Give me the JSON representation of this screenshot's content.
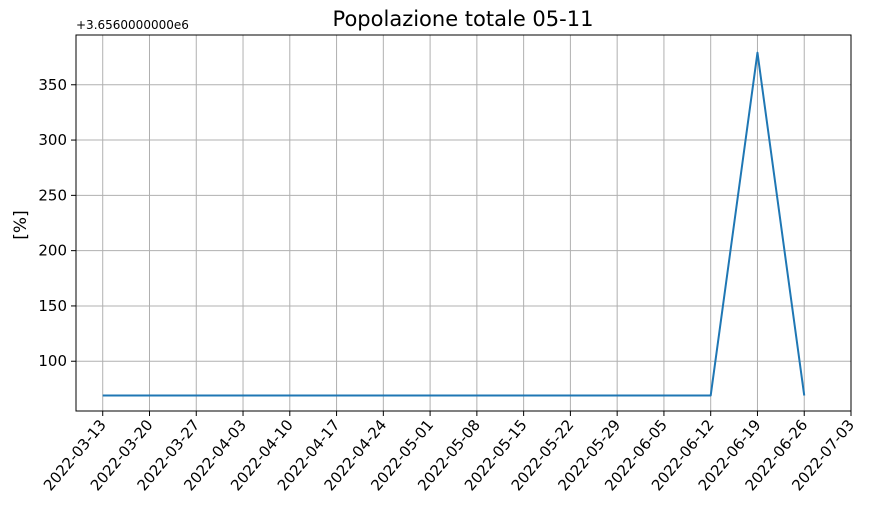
{
  "chart_data": {
    "type": "line",
    "title": "Popolazione totale 05-11",
    "xlabel": "",
    "ylabel": "[%]",
    "y_offset_text": "+3.6560000000e6",
    "x_ticks": [
      "2022-03-13",
      "2022-03-20",
      "2022-03-27",
      "2022-04-03",
      "2022-04-10",
      "2022-04-17",
      "2022-04-24",
      "2022-05-01",
      "2022-05-08",
      "2022-05-15",
      "2022-05-22",
      "2022-05-29",
      "2022-06-05",
      "2022-06-12",
      "2022-06-19",
      "2022-06-26",
      "2022-07-03"
    ],
    "y_ticks": [
      100,
      150,
      200,
      250,
      300,
      350
    ],
    "xlim": [
      "2022-03-09",
      "2022-07-03"
    ],
    "ylim": [
      55,
      395
    ],
    "grid": true,
    "series": [
      {
        "color": "#1f77b4",
        "x": [
          "2022-03-13",
          "2022-03-20",
          "2022-03-27",
          "2022-04-03",
          "2022-04-10",
          "2022-04-17",
          "2022-04-24",
          "2022-05-01",
          "2022-05-08",
          "2022-05-15",
          "2022-05-22",
          "2022-05-29",
          "2022-06-05",
          "2022-06-12",
          "2022-06-19",
          "2022-06-26"
        ],
        "y": [
          69,
          69,
          69,
          69,
          69,
          69,
          69,
          69,
          69,
          69,
          69,
          69,
          69,
          69,
          379,
          69
        ]
      }
    ]
  }
}
